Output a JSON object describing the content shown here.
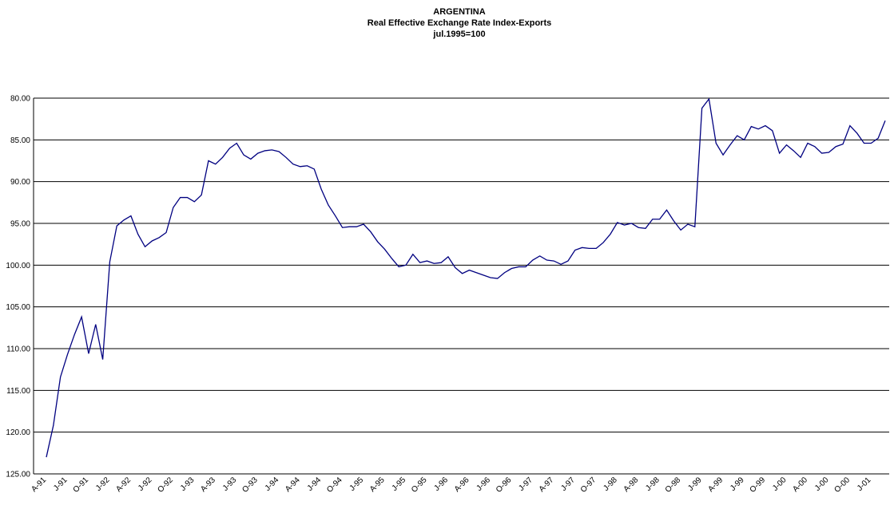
{
  "chart_data": {
    "type": "line",
    "title": "ARGENTINA",
    "subtitle": "Real Effective Exchange Rate Index-Exports",
    "note": "jul.1995=100",
    "categories": [
      "A-91",
      null,
      null,
      "J-91",
      null,
      null,
      "O-91",
      null,
      null,
      "J-92",
      null,
      null,
      "A-92",
      null,
      null,
      "J-92",
      null,
      null,
      "O-92",
      null,
      null,
      "J-93",
      null,
      null,
      "A-93",
      null,
      null,
      "J-93",
      null,
      null,
      "O-93",
      null,
      null,
      "J-94",
      null,
      null,
      "A-94",
      null,
      null,
      "J-94",
      null,
      null,
      "O-94",
      null,
      null,
      "J-95",
      null,
      null,
      "A-95",
      null,
      null,
      "J-95",
      null,
      null,
      "O-95",
      null,
      null,
      "J-96",
      null,
      null,
      "A-96",
      null,
      null,
      "J-96",
      null,
      null,
      "O-96",
      null,
      null,
      "J-97",
      null,
      null,
      "A-97",
      null,
      null,
      "J-97",
      null,
      null,
      "O-97",
      null,
      null,
      "J-98",
      null,
      null,
      "A-98",
      null,
      null,
      "J-98",
      null,
      null,
      "O-98",
      null,
      null,
      "J-99",
      null,
      null,
      "A-99",
      null,
      null,
      "J-99",
      null,
      null,
      "O-99",
      null,
      null,
      "J-00",
      null,
      null,
      "A-00",
      null,
      null,
      "J-00",
      null,
      null,
      "O-00",
      null,
      null,
      "J-01",
      null,
      null
    ],
    "series": [
      {
        "color": "#000080",
        "values": [
          123.0,
          119.2,
          113.4,
          110.7,
          108.3,
          106.2,
          110.6,
          107.1,
          111.3,
          99.6,
          95.3,
          94.6,
          94.1,
          96.3,
          97.8,
          97.1,
          96.7,
          96.1,
          93.1,
          91.9,
          91.9,
          92.4,
          91.6,
          87.5,
          87.9,
          87.1,
          86.0,
          85.4,
          86.8,
          87.3,
          86.6,
          86.3,
          86.2,
          86.4,
          87.1,
          87.9,
          88.2,
          88.1,
          88.5,
          90.9,
          92.8,
          94.1,
          95.5,
          95.4,
          95.4,
          95.1,
          96.0,
          97.2,
          98.1,
          99.2,
          100.2,
          100.0,
          98.7,
          99.7,
          99.5,
          99.8,
          99.7,
          99.0,
          100.3,
          101.0,
          100.6,
          100.9,
          101.2,
          101.5,
          101.6,
          100.9,
          100.4,
          100.2,
          100.2,
          99.4,
          98.9,
          99.4,
          99.5,
          99.9,
          99.5,
          98.2,
          97.9,
          98.0,
          98.0,
          97.3,
          96.3,
          94.9,
          95.2,
          95.0,
          95.5,
          95.6,
          94.5,
          94.5,
          93.4,
          94.7,
          95.8,
          95.1,
          95.4,
          81.2,
          80.1,
          85.4,
          86.8,
          85.6,
          84.5,
          85.0,
          83.4,
          83.7,
          83.3,
          83.9,
          86.6,
          85.6,
          86.3,
          87.1,
          85.4,
          85.8,
          86.6,
          86.5,
          85.8,
          85.5,
          83.3,
          84.2,
          85.4,
          85.4,
          84.8,
          82.7
        ]
      }
    ],
    "ylim": [
      80,
      125
    ],
    "y_inverted": true,
    "yticks": [
      {
        "value": 80,
        "label": "80.00"
      },
      {
        "value": 85,
        "label": "85.00"
      },
      {
        "value": 90,
        "label": "90.00"
      },
      {
        "value": 95,
        "label": "95.00"
      },
      {
        "value": 100,
        "label": "100.00"
      },
      {
        "value": 105,
        "label": "105.00"
      },
      {
        "value": 110,
        "label": "110.00"
      },
      {
        "value": 115,
        "label": "115.00"
      },
      {
        "value": 120,
        "label": "120.00"
      },
      {
        "value": 125,
        "label": "125.00"
      }
    ],
    "grid": true
  }
}
